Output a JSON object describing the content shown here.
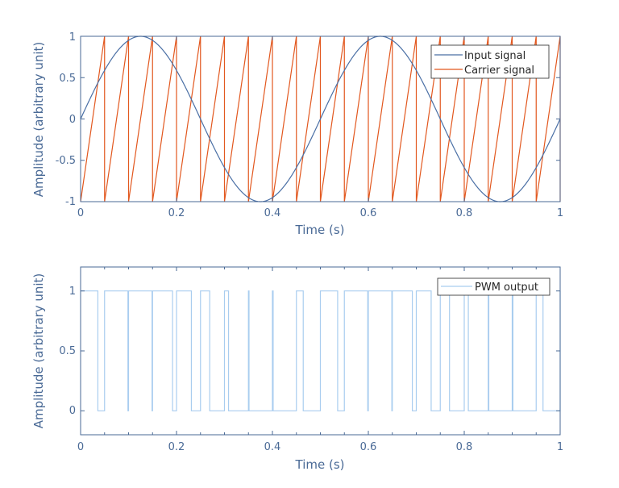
{
  "chart_data": [
    {
      "type": "line",
      "title": "",
      "xlabel": "Time (s)",
      "ylabel": "Amplitude (arbitrary unit)",
      "xlim": [
        0,
        1
      ],
      "ylim": [
        -1,
        1
      ],
      "xticks": [
        "0",
        "0.2",
        "0.4",
        "0.6",
        "0.8",
        "1"
      ],
      "yticks": [
        "-1",
        "-0.5",
        "0",
        "0.5",
        "1"
      ],
      "grid": false,
      "legend_position": "northeast",
      "series": [
        {
          "name": "Input signal",
          "color": "#4a6fa5",
          "kind": "sine",
          "frequency_hz": 2,
          "amplitude": 1,
          "phase": 0
        },
        {
          "name": "Carrier signal",
          "color": "#e2581f",
          "kind": "sawtooth",
          "frequency_hz": 20,
          "min": -1,
          "max": 1
        }
      ]
    },
    {
      "type": "line",
      "title": "",
      "xlabel": "Time (s)",
      "ylabel": "Amplitude (arbitrary unit)",
      "xlim": [
        0,
        1
      ],
      "ylim": [
        -0.2,
        1.2
      ],
      "xticks": [
        "0",
        "0.2",
        "0.4",
        "0.6",
        "0.8",
        "1"
      ],
      "yticks": [
        "0",
        "0.5",
        "1"
      ],
      "grid": false,
      "legend_position": "northeast",
      "series": [
        {
          "name": "PWM output",
          "color": "#a9cdef",
          "kind": "pwm",
          "rule": "1 when Input signal > Carrier signal else 0",
          "values_range": [
            0,
            1
          ]
        }
      ]
    }
  ],
  "plots": {
    "top": {
      "xlabel": "Time (s)",
      "ylabel": "Amplitude (arbitrary unit)",
      "xticks": [
        "0",
        "0.2",
        "0.4",
        "0.6",
        "0.8",
        "1"
      ],
      "yticks": [
        "-1",
        "-0.5",
        "0",
        "0.5",
        "1"
      ],
      "legend": [
        "Input signal",
        "Carrier signal"
      ]
    },
    "bottom": {
      "xlabel": "Time (s)",
      "ylabel": "Amplitude (arbitrary unit)",
      "xticks": [
        "0",
        "0.2",
        "0.4",
        "0.6",
        "0.8",
        "1"
      ],
      "yticks": [
        "0",
        "0.5",
        "1"
      ],
      "legend": [
        "PWM output"
      ]
    }
  },
  "colors": {
    "axis": "#4a6a96",
    "input": "#4a6fa5",
    "carrier": "#e2581f",
    "pwm": "#a9cdef"
  }
}
